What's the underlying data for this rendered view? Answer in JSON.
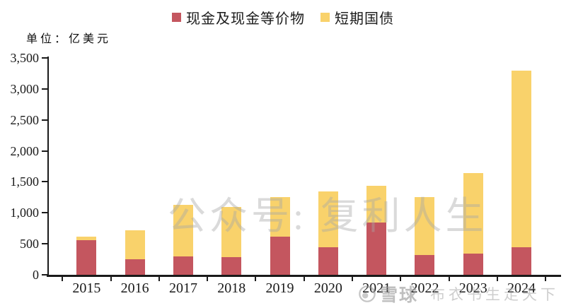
{
  "unit_label": "单位：亿美元",
  "legend": [
    {
      "label": "现金及现金等价物",
      "color": "#C4565F"
    },
    {
      "label": "短期国债",
      "color": "#F9D26B"
    }
  ],
  "watermark_center": "公众号: 复利人生",
  "watermark_bottom": {
    "brand": "雪球",
    "username": "布衣书生走天下"
  },
  "chart_data": {
    "type": "bar",
    "stacked": true,
    "title": "",
    "unit": "亿美元",
    "categories": [
      "2015",
      "2016",
      "2017",
      "2018",
      "2019",
      "2020",
      "2021",
      "2022",
      "2023",
      "2024"
    ],
    "series": [
      {
        "name": "现金及现金等价物",
        "color": "#C4565F",
        "values": [
          555,
          250,
          300,
          285,
          615,
          450,
          845,
          320,
          345,
          440
        ]
      },
      {
        "name": "短期国债",
        "color": "#F9D26B",
        "values": [
          60,
          465,
          830,
          815,
          635,
          900,
          595,
          930,
          1295,
          2860
        ]
      }
    ],
    "xlabel": "",
    "ylabel": "亿美元",
    "ylim": [
      0,
      3500
    ],
    "ytick_step": 500,
    "yticks": [
      {
        "v": 0,
        "label": "0"
      },
      {
        "v": 500,
        "label": "500"
      },
      {
        "v": 1000,
        "label": "1,000"
      },
      {
        "v": 1500,
        "label": "1,500"
      },
      {
        "v": 2000,
        "label": "2,000"
      },
      {
        "v": 2500,
        "label": "2,500"
      },
      {
        "v": 3000,
        "label": "3,000"
      },
      {
        "v": 3500,
        "label": "3,500"
      }
    ],
    "grid": false,
    "legend_position": "top"
  }
}
